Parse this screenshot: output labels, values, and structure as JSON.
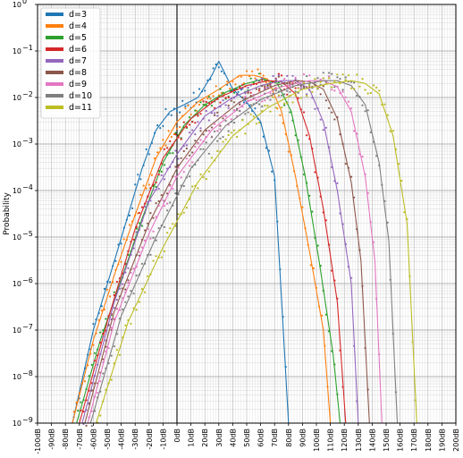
{
  "chart_data": {
    "type": "line",
    "title": "",
    "xlabel": "",
    "ylabel": "Probability",
    "x_unit": "dB",
    "xlim": [
      -100,
      200
    ],
    "ylim": [
      1e-09,
      1
    ],
    "yscale": "log",
    "x_ticks": [
      "-100dB",
      "-90dB",
      "-80dB",
      "-70dB",
      "-60dB",
      "-50dB",
      "-40dB",
      "-30dB",
      "-20dB",
      "-10dB",
      "0dB",
      "10dB",
      "20dB",
      "30dB",
      "40dB",
      "50dB",
      "60dB",
      "70dB",
      "80dB",
      "90dB",
      "100dB",
      "110dB",
      "120dB",
      "130dB",
      "140dB",
      "150dB",
      "160dB",
      "170dB",
      "180dB",
      "190dB",
      "200dB"
    ],
    "y_ticks": [
      {
        "base": "10",
        "exp": "0"
      },
      {
        "base": "10",
        "exp": "−1"
      },
      {
        "base": "10",
        "exp": "−2"
      },
      {
        "base": "10",
        "exp": "−3"
      },
      {
        "base": "10",
        "exp": "−4"
      },
      {
        "base": "10",
        "exp": "−5"
      },
      {
        "base": "10",
        "exp": "−6"
      },
      {
        "base": "10",
        "exp": "−7"
      },
      {
        "base": "10",
        "exp": "−8"
      },
      {
        "base": "10",
        "exp": "−9"
      }
    ],
    "grid": true,
    "legend_position": "top-left",
    "markers": "dots with fitted line",
    "series": [
      {
        "name": "d=3",
        "color": "#1f77b4",
        "x": [
          -75,
          -60,
          -45,
          -35,
          -25,
          -15,
          -5,
          5,
          15,
          25,
          30,
          40,
          50,
          60,
          70,
          80
        ],
        "y": [
          1e-09,
          1e-07,
          3e-06,
          3e-05,
          0.0003,
          0.002,
          0.005,
          0.007,
          0.01,
          0.03,
          0.06,
          0.015,
          0.008,
          0.003,
          0.0002,
          1e-09
        ]
      },
      {
        "name": "d=4",
        "color": "#ff7f0e",
        "x": [
          -75,
          -60,
          -45,
          -30,
          -15,
          0,
          15,
          30,
          45,
          55,
          65,
          75,
          85,
          95,
          105,
          110
        ],
        "y": [
          1e-09,
          6e-08,
          1.5e-06,
          3e-05,
          0.0005,
          0.003,
          0.008,
          0.015,
          0.03,
          0.03,
          0.025,
          0.005,
          0.0002,
          5e-06,
          1e-07,
          1e-09
        ]
      },
      {
        "name": "d=5",
        "color": "#2ca02c",
        "x": [
          -72,
          -55,
          -40,
          -25,
          -10,
          5,
          20,
          35,
          50,
          62,
          72,
          82,
          92,
          102,
          112,
          117
        ],
        "y": [
          1e-09,
          6e-08,
          1.2e-06,
          2.5e-05,
          0.0004,
          0.0025,
          0.007,
          0.013,
          0.02,
          0.025,
          0.02,
          0.005,
          0.0002,
          3e-06,
          3e-08,
          1e-09
        ]
      },
      {
        "name": "d=6",
        "color": "#d62728",
        "x": [
          -70,
          -50,
          -30,
          -10,
          10,
          30,
          50,
          65,
          75,
          85,
          95,
          105,
          115,
          121
        ],
        "y": [
          1e-09,
          1.5e-07,
          1.5e-05,
          0.0005,
          0.0035,
          0.01,
          0.018,
          0.023,
          0.022,
          0.012,
          0.0015,
          4e-05,
          4e-07,
          1e-09
        ]
      },
      {
        "name": "d=7",
        "color": "#9467bd",
        "x": [
          -68,
          -45,
          -20,
          0,
          20,
          40,
          60,
          75,
          85,
          95,
          105,
          115,
          125,
          130
        ],
        "y": [
          1e-09,
          4e-07,
          6e-05,
          0.0006,
          0.004,
          0.01,
          0.018,
          0.023,
          0.023,
          0.015,
          0.003,
          0.0001,
          1e-06,
          1e-09
        ]
      },
      {
        "name": "d=8",
        "color": "#8c564b",
        "x": [
          -66,
          -45,
          -20,
          0,
          20,
          45,
          70,
          85,
          95,
          105,
          115,
          125,
          132,
          138
        ],
        "y": [
          1e-09,
          2.5e-07,
          2e-05,
          0.0003,
          0.002,
          0.008,
          0.018,
          0.023,
          0.022,
          0.015,
          0.0035,
          0.00015,
          3e-06,
          1e-09
        ]
      },
      {
        "name": "d=9",
        "color": "#e377c2",
        "x": [
          -64,
          -45,
          -20,
          0,
          25,
          50,
          75,
          95,
          105,
          115,
          125,
          135,
          142,
          147
        ],
        "y": [
          1e-09,
          1.5e-07,
          1.2e-05,
          0.0002,
          0.002,
          0.008,
          0.017,
          0.023,
          0.023,
          0.017,
          0.005,
          0.0002,
          3e-06,
          1e-09
        ]
      },
      {
        "name": "d=10",
        "color": "#7f7f7f",
        "x": [
          -62,
          -40,
          -15,
          10,
          35,
          60,
          85,
          105,
          115,
          125,
          135,
          145,
          152,
          158
        ],
        "y": [
          1e-09,
          2e-07,
          1e-05,
          0.0003,
          0.0025,
          0.009,
          0.018,
          0.023,
          0.023,
          0.018,
          0.007,
          0.0004,
          8e-06,
          1e-09
        ]
      },
      {
        "name": "d=11",
        "color": "#bcbd22",
        "x": [
          -58,
          -35,
          -10,
          15,
          40,
          65,
          90,
          110,
          125,
          135,
          145,
          155,
          165,
          172
        ],
        "y": [
          1e-09,
          1.5e-07,
          6e-06,
          0.00015,
          0.0015,
          0.006,
          0.015,
          0.02,
          0.023,
          0.02,
          0.012,
          0.0015,
          2e-05,
          1e-09
        ]
      }
    ]
  }
}
